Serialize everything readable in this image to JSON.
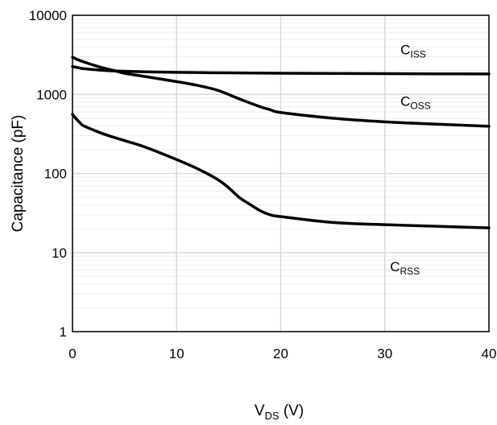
{
  "chart_data": {
    "type": "line",
    "title": "",
    "xlabel": {
      "main": "V",
      "sub": "DS",
      "suffix": " (V)"
    },
    "ylabel": "Capacitance (pF)",
    "xlim": [
      0,
      40
    ],
    "ylim": [
      1,
      10000
    ],
    "y_scale": "log",
    "x_ticks": [
      0,
      10,
      20,
      30,
      40
    ],
    "x_tick_labels": [
      "0",
      "10",
      "20",
      "30",
      "40"
    ],
    "y_ticks": [
      1,
      10,
      100,
      1000,
      10000
    ],
    "y_tick_labels": [
      "1",
      "10",
      "100",
      "1000",
      "10000"
    ],
    "grid": true,
    "series": [
      {
        "label_main": "C",
        "label_sub": "ISS",
        "label_at": {
          "x": 31.5,
          "y": 3200
        },
        "x": [
          0,
          0.5,
          1,
          2,
          3,
          4,
          5,
          7,
          10,
          15,
          20,
          25,
          30,
          35,
          40
        ],
        "y": [
          2250,
          2180,
          2120,
          2060,
          2010,
          1980,
          1960,
          1930,
          1900,
          1870,
          1850,
          1840,
          1830,
          1820,
          1810
        ]
      },
      {
        "label_main": "C",
        "label_sub": "OSS",
        "label_at": {
          "x": 31.5,
          "y": 720
        },
        "x": [
          0,
          0.5,
          1,
          2,
          3,
          4,
          5,
          7,
          10,
          12,
          14,
          16,
          18,
          19,
          20,
          25,
          30,
          35,
          40
        ],
        "y": [
          2950,
          2750,
          2600,
          2350,
          2150,
          2000,
          1850,
          1680,
          1450,
          1300,
          1120,
          880,
          700,
          640,
          590,
          500,
          450,
          420,
          395
        ]
      },
      {
        "label_main": "C",
        "label_sub": "RSS",
        "label_at": {
          "x": 30.5,
          "y": 5.8
        },
        "x": [
          0,
          0.3,
          0.7,
          1,
          2,
          3,
          5,
          7,
          10,
          12,
          14,
          15,
          16,
          17,
          18,
          19,
          20,
          25,
          30,
          35,
          40
        ],
        "y": [
          560,
          500,
          440,
          405,
          355,
          315,
          260,
          215,
          150,
          115,
          83,
          66,
          50,
          41,
          34,
          30,
          28.5,
          24,
          22.5,
          21.5,
          20.5
        ]
      }
    ]
  }
}
